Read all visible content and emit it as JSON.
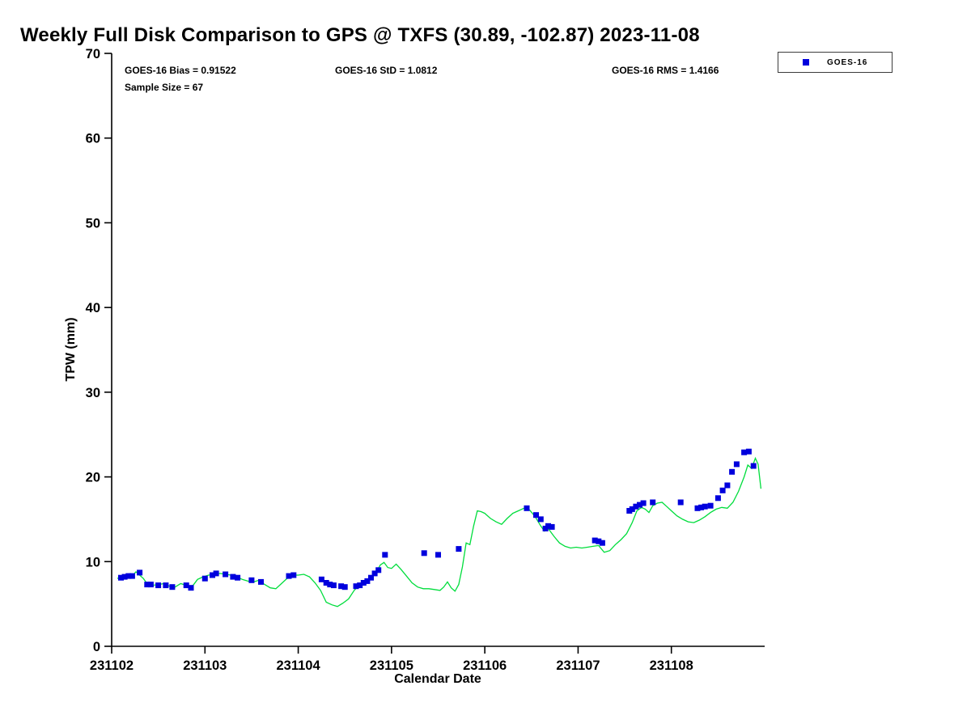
{
  "annotations": {
    "bias": "GOES-16 Bias = 0.91522",
    "std": "GOES-16 StD = 1.0812",
    "rms": "GOES-16 RMS = 1.4166",
    "sample_size": "Sample Size = 67"
  },
  "colors": {
    "axis": "#000000",
    "background": "#ffffff",
    "gps_line": "#00dd3c",
    "goes16_marker": "#0000dd"
  },
  "chart_data": {
    "type": "line",
    "title": "Weekly Full Disk Comparison to GPS @ TXFS (30.89, -102.87) 2023-11-08",
    "xlabel": "Calendar Date",
    "ylabel": "TPW (mm)",
    "grid": false,
    "x_base": 231102,
    "x_ticks": [
      231102,
      231103,
      231104,
      231105,
      231106,
      231107,
      231108
    ],
    "xlim_days_from_base": [
      0,
      7
    ],
    "y_ticks": [
      0,
      10,
      20,
      30,
      40,
      50,
      60,
      70
    ],
    "ylim": [
      0,
      70
    ],
    "legend": {
      "position": "top-right",
      "entries": [
        "GOES-16"
      ]
    },
    "series": [
      {
        "name": "GPS",
        "type": "line",
        "color": "#00dd3c",
        "x_offsets": [
          0.06,
          0.1,
          0.14,
          0.18,
          0.22,
          0.26,
          0.3,
          0.34,
          0.38,
          0.44,
          0.5,
          0.56,
          0.62,
          0.68,
          0.74,
          0.8,
          0.86,
          0.92,
          0.98,
          1.04,
          1.1,
          1.16,
          1.22,
          1.28,
          1.34,
          1.4,
          1.46,
          1.52,
          1.58,
          1.64,
          1.7,
          1.76,
          1.82,
          1.88,
          1.94,
          2.0,
          2.06,
          2.12,
          2.18,
          2.24,
          2.3,
          2.36,
          2.42,
          2.48,
          2.54,
          2.6,
          2.66,
          2.72,
          2.78,
          2.84,
          2.88,
          2.92,
          2.96,
          3.0,
          3.05,
          3.1,
          3.16,
          3.22,
          3.28,
          3.34,
          3.4,
          3.46,
          3.52,
          3.56,
          3.6,
          3.64,
          3.68,
          3.72,
          3.76,
          3.8,
          3.84,
          3.88,
          3.92,
          3.96,
          4.0,
          4.06,
          4.12,
          4.18,
          4.24,
          4.3,
          4.36,
          4.42,
          4.48,
          4.54,
          4.6,
          4.64,
          4.68,
          4.74,
          4.8,
          4.86,
          4.92,
          4.98,
          5.04,
          5.1,
          5.16,
          5.22,
          5.28,
          5.34,
          5.4,
          5.46,
          5.52,
          5.58,
          5.63,
          5.68,
          5.72,
          5.76,
          5.8,
          5.85,
          5.9,
          5.95,
          6.0,
          6.06,
          6.12,
          6.18,
          6.24,
          6.3,
          6.36,
          6.42,
          6.48,
          6.54,
          6.6,
          6.66,
          6.72,
          6.78,
          6.82,
          6.86,
          6.9,
          6.93,
          6.96
        ],
        "values": [
          8.0,
          8.2,
          8.1,
          8.4,
          8.3,
          8.8,
          8.4,
          8.0,
          7.4,
          7.2,
          7.3,
          7.4,
          7.1,
          7.0,
          7.4,
          7.2,
          7.0,
          7.9,
          8.2,
          8.4,
          8.5,
          8.6,
          8.5,
          8.4,
          8.2,
          7.9,
          7.7,
          7.6,
          7.8,
          7.3,
          6.9,
          6.8,
          7.4,
          8.0,
          8.4,
          8.4,
          8.5,
          8.2,
          7.5,
          6.6,
          5.2,
          4.9,
          4.7,
          5.1,
          5.6,
          6.6,
          7.3,
          7.6,
          8.1,
          8.8,
          9.6,
          9.9,
          9.3,
          9.2,
          9.7,
          9.1,
          8.3,
          7.5,
          7.0,
          6.8,
          6.8,
          6.7,
          6.6,
          7.0,
          7.6,
          6.9,
          6.5,
          7.3,
          9.4,
          12.2,
          12.0,
          14.2,
          16.0,
          15.9,
          15.7,
          15.1,
          14.7,
          14.4,
          15.1,
          15.7,
          16.0,
          16.3,
          16.1,
          15.3,
          14.2,
          13.6,
          13.9,
          13.0,
          12.2,
          11.8,
          11.6,
          11.7,
          11.6,
          11.7,
          11.8,
          11.9,
          11.1,
          11.3,
          12.0,
          12.6,
          13.3,
          14.6,
          16.0,
          16.4,
          16.2,
          15.8,
          16.6,
          16.9,
          17.0,
          16.5,
          16.0,
          15.4,
          15.0,
          14.7,
          14.6,
          14.9,
          15.3,
          15.8,
          16.2,
          16.4,
          16.3,
          17.0,
          18.3,
          20.0,
          21.4,
          21.0,
          22.2,
          21.5,
          18.6
        ]
      },
      {
        "name": "GOES-16",
        "type": "scatter",
        "marker": "square",
        "color": "#0000dd",
        "x_offsets": [
          0.1,
          0.14,
          0.18,
          0.22,
          0.3,
          0.38,
          0.42,
          0.5,
          0.58,
          0.65,
          0.8,
          0.85,
          1.0,
          1.08,
          1.12,
          1.22,
          1.3,
          1.35,
          1.5,
          1.6,
          1.9,
          1.95,
          2.25,
          2.3,
          2.34,
          2.38,
          2.46,
          2.5,
          2.62,
          2.66,
          2.7,
          2.74,
          2.78,
          2.82,
          2.86,
          2.93,
          3.35,
          3.5,
          3.72,
          4.45,
          4.55,
          4.6,
          4.65,
          4.68,
          4.72,
          5.18,
          5.22,
          5.26,
          5.55,
          5.58,
          5.62,
          5.66,
          5.7,
          5.8,
          6.1,
          6.28,
          6.32,
          6.36,
          6.42,
          6.5,
          6.55,
          6.6,
          6.65,
          6.7,
          6.78,
          6.83,
          6.88
        ],
        "values": [
          8.1,
          8.2,
          8.3,
          8.3,
          8.7,
          7.3,
          7.3,
          7.2,
          7.2,
          7.0,
          7.2,
          6.9,
          8.0,
          8.4,
          8.6,
          8.5,
          8.2,
          8.1,
          7.8,
          7.6,
          8.3,
          8.4,
          7.9,
          7.5,
          7.3,
          7.2,
          7.1,
          7.0,
          7.1,
          7.2,
          7.5,
          7.7,
          8.1,
          8.6,
          9.0,
          10.8,
          11.0,
          10.8,
          11.5,
          16.3,
          15.5,
          15.0,
          13.9,
          14.2,
          14.1,
          12.5,
          12.4,
          12.2,
          16.0,
          16.2,
          16.5,
          16.7,
          16.9,
          17.0,
          17.0,
          16.3,
          16.4,
          16.5,
          16.6,
          17.5,
          18.4,
          19.0,
          20.6,
          21.5,
          22.9,
          23.0,
          21.3
        ]
      }
    ]
  }
}
